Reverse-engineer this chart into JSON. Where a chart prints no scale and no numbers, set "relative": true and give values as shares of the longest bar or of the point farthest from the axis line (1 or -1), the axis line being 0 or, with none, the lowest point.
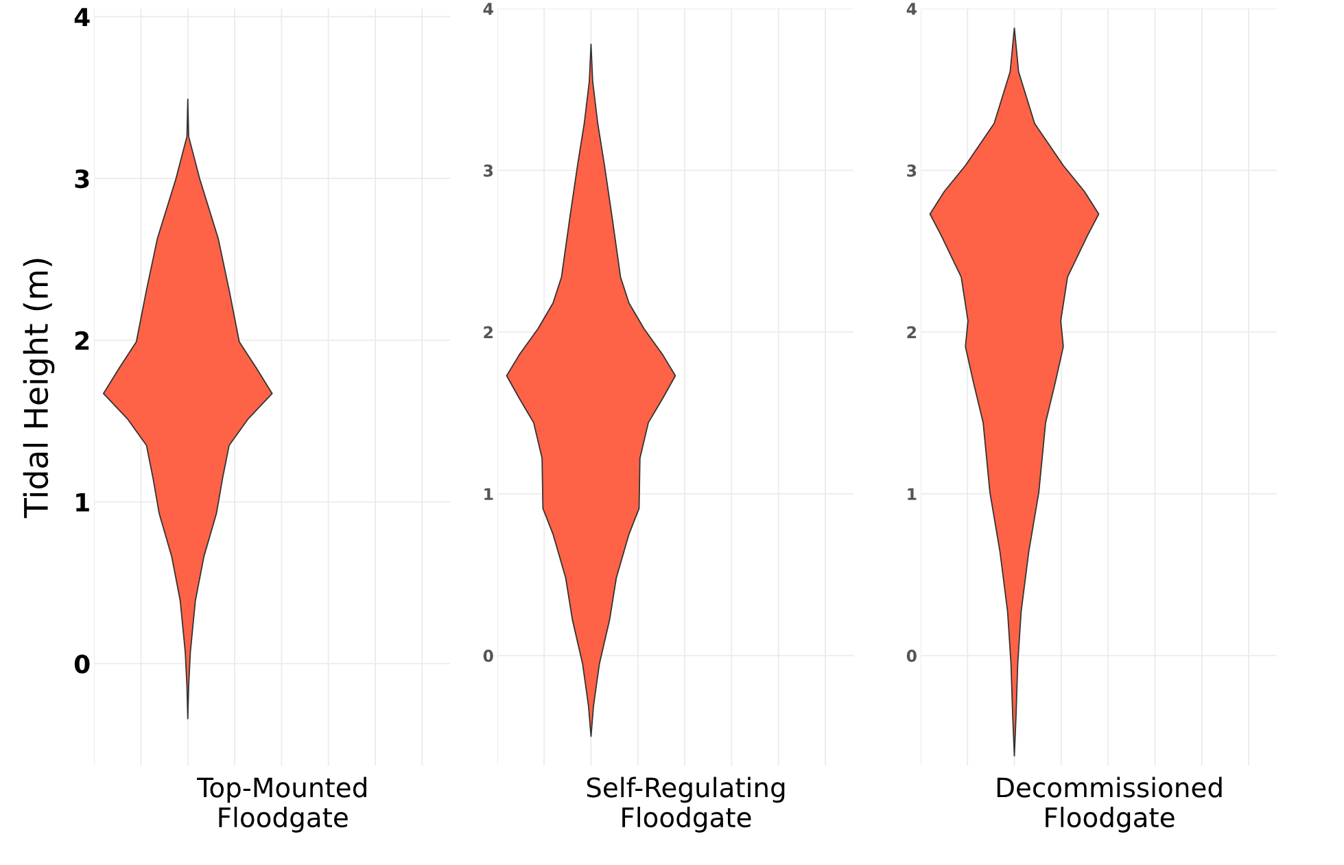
{
  "chart_data": [
    {
      "type": "area",
      "orientation": "horizontal",
      "relative": true,
      "xlabel": "Top-Mounted\nFloodgate",
      "ylabel": "Tidal Height (m)",
      "ylim": [
        -0.63,
        4.05
      ],
      "yticks": [
        0,
        1,
        2,
        3,
        4
      ],
      "grid": true,
      "x": [
        3.49,
        3.26,
        3.0,
        2.63,
        2.31,
        1.99,
        1.83,
        1.67,
        1.51,
        1.35,
        1.14,
        0.93,
        0.66,
        0.39,
        0.07,
        -0.14,
        -0.34
      ],
      "series": [
        {
          "color": "#ff6347",
          "values": [
            0,
            0.01,
            0.14,
            0.36,
            0.49,
            0.61,
            0.81,
            1,
            0.71,
            0.49,
            0.41,
            0.34,
            0.19,
            0.09,
            0.03,
            0.01,
            0
          ]
        }
      ]
    },
    {
      "type": "area",
      "orientation": "horizontal",
      "relative": true,
      "xlabel": "Self-Regulating\nFloodgate",
      "ylim": [
        -0.68,
        4.0
      ],
      "yticks": [
        0,
        1,
        2,
        3,
        4
      ],
      "grid": true,
      "x": [
        3.78,
        3.55,
        3.29,
        3.03,
        2.71,
        2.34,
        2.18,
        2.02,
        1.86,
        1.73,
        1.59,
        1.44,
        1.22,
        0.91,
        0.75,
        0.48,
        0.22,
        -0.05,
        -0.31,
        -0.5
      ],
      "series": [
        {
          "color": "#ff6347",
          "values": [
            0,
            0.02,
            0.08,
            0.16,
            0.25,
            0.35,
            0.45,
            0.63,
            0.85,
            1,
            0.85,
            0.68,
            0.58,
            0.57,
            0.45,
            0.3,
            0.22,
            0.1,
            0.03,
            0
          ]
        }
      ]
    },
    {
      "type": "area",
      "orientation": "horizontal",
      "relative": true,
      "xlabel": "Decommissioned\nFloodgate",
      "ylim": [
        -0.68,
        4.0
      ],
      "yticks": [
        0,
        1,
        2,
        3,
        4
      ],
      "grid": true,
      "x": [
        3.88,
        3.61,
        3.29,
        3.03,
        2.87,
        2.73,
        2.6,
        2.34,
        2.07,
        1.91,
        1.7,
        1.44,
        1.01,
        0.64,
        0.27,
        -0.05,
        -0.37,
        -0.62
      ],
      "series": [
        {
          "color": "#ff6347",
          "values": [
            0,
            0.05,
            0.24,
            0.58,
            0.83,
            1,
            0.87,
            0.63,
            0.55,
            0.58,
            0.49,
            0.37,
            0.29,
            0.17,
            0.08,
            0.04,
            0.02,
            0
          ]
        }
      ]
    }
  ]
}
